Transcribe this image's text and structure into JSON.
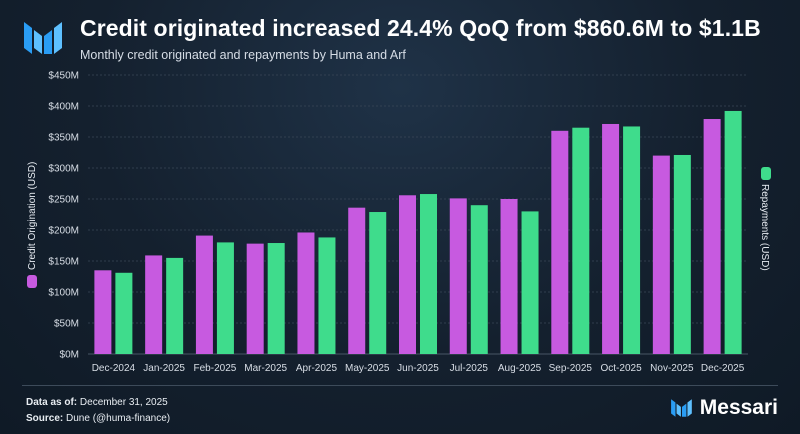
{
  "header": {
    "title": "Credit originated increased 24.4% QoQ from $860.6M to $1.1B",
    "subtitle": "Monthly credit originated and repayments by Huma and Arf"
  },
  "footer": {
    "data_as_of_label": "Data as of:",
    "data_as_of_value": "December 31, 2025",
    "source_label": "Source:",
    "source_value": "Dune (@huma-finance)",
    "brand": "Messari"
  },
  "colors": {
    "credit": "#c75ae0",
    "repayments": "#3fdc8c",
    "grid": "#3a4757",
    "tick_text": "#d8dee6"
  },
  "chart_data": {
    "type": "bar",
    "categories": [
      "Dec-2024",
      "Jan-2025",
      "Feb-2025",
      "Mar-2025",
      "Apr-2025",
      "May-2025",
      "Jun-2025",
      "Jul-2025",
      "Aug-2025",
      "Sep-2025",
      "Oct-2025",
      "Nov-2025",
      "Dec-2025"
    ],
    "series": [
      {
        "name": "Credit Origination (USD)",
        "values": [
          135,
          159,
          191,
          178,
          196,
          236,
          256,
          251,
          250,
          360,
          371,
          320,
          379
        ]
      },
      {
        "name": "Repayments (USD)",
        "values": [
          131,
          155,
          180,
          179,
          188,
          229,
          258,
          240,
          230,
          365,
          367,
          321,
          392
        ]
      }
    ],
    "y_ticks": [
      "$0M",
      "$50M",
      "$100M",
      "$150M",
      "$200M",
      "$250M",
      "$300M",
      "$350M",
      "$400M",
      "$450M"
    ],
    "ylim": [
      0,
      450
    ],
    "left_axis_label": "Credit Origination (USD)",
    "right_axis_label": "Repayments (USD)",
    "grid": true,
    "legend": "axis-side markers"
  }
}
